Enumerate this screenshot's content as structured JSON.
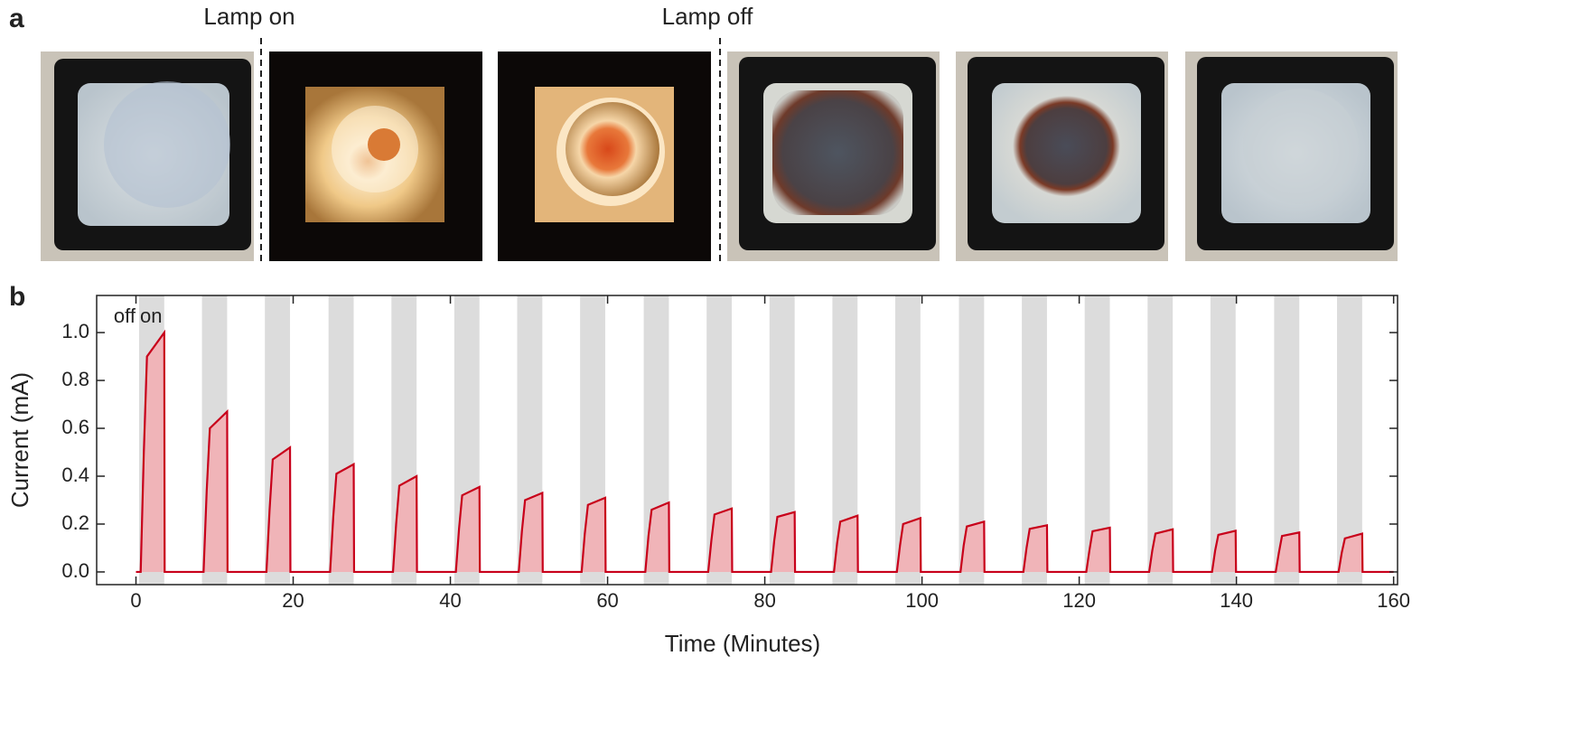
{
  "panel_a_label": "a",
  "panel_b_label": "b",
  "photo_labels": [
    "Lamp on",
    "Lamp off"
  ],
  "chart_data": {
    "type": "line",
    "xlabel": "Time (Minutes)",
    "ylabel": "Current (mA)",
    "region_labels": [
      "off",
      "on"
    ],
    "color": "#c8001a",
    "fill_color": "#f0b4b8",
    "shade_color": "#dcdcdc",
    "xlim": [
      -5,
      160.5
    ],
    "ylim": [
      -0.053,
      1.155
    ],
    "xticks": [
      0,
      20,
      40,
      60,
      80,
      100,
      120,
      140,
      160
    ],
    "yticks": [
      {
        "value": 0,
        "label": "0.0"
      },
      0.2,
      0.4,
      0.6,
      0.8,
      {
        "value": 1,
        "label": "1.0"
      }
    ],
    "shaded_spans": [
      [
        0.4,
        3.6
      ],
      [
        8.4,
        11.6
      ],
      [
        16.4,
        19.6
      ],
      [
        24.5,
        27.7
      ],
      [
        32.5,
        35.7
      ],
      [
        40.5,
        43.7
      ],
      [
        48.5,
        51.7
      ],
      [
        56.5,
        59.7
      ],
      [
        64.6,
        67.8
      ],
      [
        72.6,
        75.8
      ],
      [
        80.6,
        83.8
      ],
      [
        88.6,
        91.8
      ],
      [
        96.6,
        99.8
      ],
      [
        104.7,
        107.9
      ],
      [
        112.7,
        115.9
      ],
      [
        120.7,
        123.9
      ],
      [
        128.7,
        131.9
      ],
      [
        136.7,
        139.9
      ],
      [
        144.8,
        148.0
      ],
      [
        152.8,
        156.0
      ]
    ],
    "x": [
      0,
      0.6,
      1.0,
      1.4,
      3.6,
      3.65,
      8.6,
      9.0,
      9.4,
      11.6,
      11.65,
      16.6,
      17.0,
      17.4,
      19.6,
      19.65,
      24.7,
      25.1,
      25.5,
      27.7,
      27.75,
      32.7,
      33.1,
      33.5,
      35.7,
      35.75,
      40.7,
      41.1,
      41.5,
      43.7,
      43.75,
      48.7,
      49.1,
      49.5,
      51.7,
      51.75,
      56.7,
      57.1,
      57.5,
      59.7,
      59.75,
      64.8,
      65.2,
      65.6,
      67.8,
      67.85,
      72.8,
      73.2,
      73.6,
      75.8,
      75.85,
      80.8,
      81.2,
      81.6,
      83.8,
      83.85,
      88.8,
      89.2,
      89.6,
      91.8,
      91.85,
      96.8,
      97.2,
      97.6,
      99.8,
      99.85,
      104.9,
      105.3,
      105.7,
      107.9,
      107.95,
      112.9,
      113.3,
      113.7,
      115.9,
      115.95,
      120.9,
      121.3,
      121.7,
      123.9,
      123.95,
      128.9,
      129.3,
      129.7,
      131.9,
      131.95,
      136.9,
      137.3,
      137.7,
      139.9,
      139.95,
      145.0,
      145.4,
      145.8,
      148.0,
      148.05,
      153.0,
      153.4,
      153.8,
      156.0,
      156.05,
      160
    ],
    "values": [
      0,
      0,
      0.5,
      0.9,
      1.0,
      0,
      0,
      0.34,
      0.6,
      0.67,
      0,
      0,
      0.26,
      0.47,
      0.52,
      0,
      0,
      0.23,
      0.41,
      0.45,
      0,
      0,
      0.2,
      0.36,
      0.4,
      0,
      0,
      0.18,
      0.32,
      0.355,
      0,
      0,
      0.17,
      0.3,
      0.33,
      0,
      0,
      0.16,
      0.28,
      0.31,
      0,
      0,
      0.15,
      0.26,
      0.29,
      0,
      0,
      0.13,
      0.24,
      0.265,
      0,
      0,
      0.13,
      0.23,
      0.25,
      0,
      0,
      0.12,
      0.21,
      0.235,
      0,
      0,
      0.11,
      0.2,
      0.225,
      0,
      0,
      0.11,
      0.19,
      0.21,
      0,
      0,
      0.1,
      0.18,
      0.195,
      0,
      0,
      0.09,
      0.17,
      0.185,
      0,
      0,
      0.09,
      0.16,
      0.178,
      0,
      0,
      0.09,
      0.155,
      0.172,
      0,
      0,
      0.08,
      0.15,
      0.165,
      0,
      0,
      0.08,
      0.14,
      0.16,
      0,
      0
    ]
  }
}
